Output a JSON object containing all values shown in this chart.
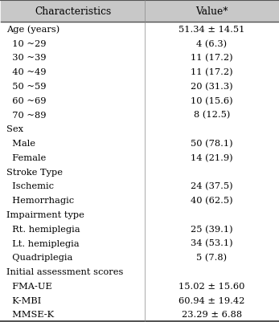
{
  "title_row": [
    "Characteristics",
    "Value*"
  ],
  "rows": [
    {
      "label": "Age (years)",
      "value": "51.34 ± 14.51",
      "indent": 0
    },
    {
      "label": "  10 ~29",
      "value": "4 (6.3)",
      "indent": 1
    },
    {
      "label": "  30 ~39",
      "value": "11 (17.2)",
      "indent": 1
    },
    {
      "label": "  40 ~49",
      "value": "11 (17.2)",
      "indent": 1
    },
    {
      "label": "  50 ~59",
      "value": "20 (31.3)",
      "indent": 1
    },
    {
      "label": "  60 ~69",
      "value": "10 (15.6)",
      "indent": 1
    },
    {
      "label": "  70 ~89",
      "value": "8 (12.5)",
      "indent": 1
    },
    {
      "label": "Sex",
      "value": "",
      "indent": 0
    },
    {
      "label": "  Male",
      "value": "50 (78.1)",
      "indent": 1
    },
    {
      "label": "  Female",
      "value": "14 (21.9)",
      "indent": 1
    },
    {
      "label": "Stroke Type",
      "value": "",
      "indent": 0
    },
    {
      "label": "  Ischemic",
      "value": "24 (37.5)",
      "indent": 1
    },
    {
      "label": "  Hemorrhagic",
      "value": "40 (62.5)",
      "indent": 1
    },
    {
      "label": "Impairment type",
      "value": "",
      "indent": 0
    },
    {
      "label": "  Rt. hemiplegia",
      "value": "25 (39.1)",
      "indent": 1
    },
    {
      "label": "  Lt. hemiplegia",
      "value": "34 (53.1)",
      "indent": 1
    },
    {
      "label": "  Quadriplegia",
      "value": "5 (7.8)",
      "indent": 1
    },
    {
      "label": "Initial assessment scores",
      "value": "",
      "indent": 0
    },
    {
      "label": "  FMA-UE",
      "value": "15.02 ± 15.60",
      "indent": 1
    },
    {
      "label": "  K-MBI",
      "value": "60.94 ± 19.42",
      "indent": 1
    },
    {
      "label": "  MMSE-K",
      "value": "23.29 ± 6.88",
      "indent": 1
    }
  ],
  "header_bg": "#c8c8c8",
  "header_text_color": "#000000",
  "body_bg": "#ffffff",
  "body_text_color": "#000000",
  "font_size": 8.2,
  "header_font_size": 8.8,
  "outer_line_color": "#555555",
  "inner_line_color": "#888888",
  "col_split": 0.52
}
